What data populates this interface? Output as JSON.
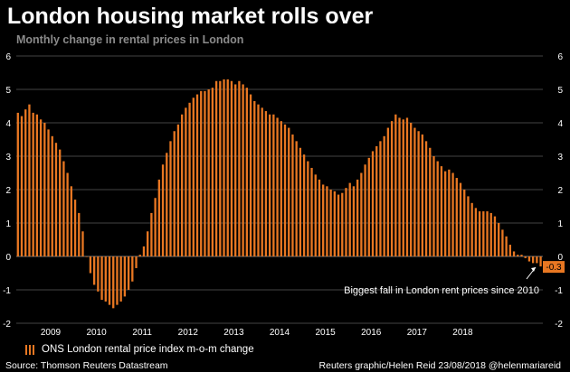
{
  "header": {
    "title": "London housing market rolls over",
    "subtitle": "Monthly change in rental prices in London"
  },
  "legend": {
    "label": "ONS London rental price index m-o-m change"
  },
  "footer": {
    "source": "Source: Thomson Reuters Datastream",
    "credit": "Reuters graphic/Helen Reid 23/08/2018 @helenmariareid"
  },
  "annotation": {
    "text": "Biggest fall in London rent prices since 2010",
    "last_value_label": "-0.3"
  },
  "colors": {
    "bar": "#e87722",
    "background": "#000000",
    "grid": "#444444",
    "label_box": "#e87722"
  },
  "chart_data": {
    "type": "bar",
    "series": [
      {
        "name": "ONS London rental price index m-o-m change",
        "values": [
          4.3,
          4.2,
          4.4,
          4.55,
          4.3,
          4.25,
          4.1,
          4.0,
          3.8,
          3.6,
          3.4,
          3.2,
          2.85,
          2.5,
          2.1,
          1.7,
          1.3,
          0.75,
          0.0,
          -0.5,
          -0.85,
          -1.05,
          -1.3,
          -1.35,
          -1.45,
          -1.55,
          -1.45,
          -1.35,
          -1.2,
          -1.0,
          -0.75,
          -0.35,
          0.05,
          0.3,
          0.75,
          1.3,
          1.75,
          2.3,
          2.75,
          3.1,
          3.45,
          3.75,
          3.95,
          4.25,
          4.45,
          4.6,
          4.75,
          4.85,
          4.95,
          4.95,
          5.0,
          5.05,
          5.25,
          5.25,
          5.3,
          5.3,
          5.25,
          5.15,
          5.25,
          5.15,
          5.05,
          4.85,
          4.65,
          4.55,
          4.45,
          4.35,
          4.25,
          4.25,
          4.15,
          4.05,
          3.95,
          3.85,
          3.65,
          3.45,
          3.25,
          3.05,
          2.85,
          2.65,
          2.45,
          2.3,
          2.15,
          2.1,
          2.0,
          1.95,
          1.85,
          1.9,
          2.05,
          2.2,
          2.1,
          2.3,
          2.5,
          2.75,
          2.95,
          3.15,
          3.3,
          3.45,
          3.6,
          3.85,
          4.05,
          4.25,
          4.15,
          4.1,
          4.15,
          4.0,
          3.85,
          3.75,
          3.65,
          3.45,
          3.25,
          3.0,
          2.85,
          2.7,
          2.55,
          2.6,
          2.5,
          2.35,
          2.2,
          2.0,
          1.8,
          1.6,
          1.45,
          1.35,
          1.35,
          1.35,
          1.3,
          1.2,
          1.0,
          0.8,
          0.6,
          0.35,
          0.15,
          0.05,
          0.05,
          -0.05,
          -0.15,
          -0.2,
          -0.2,
          -0.3
        ]
      }
    ],
    "x_tick_labels": [
      "2009",
      "2010",
      "2011",
      "2012",
      "2013",
      "2014",
      "2015",
      "2016",
      "2017",
      "2018"
    ],
    "y_ticks": [
      -2,
      -1,
      0,
      1,
      2,
      3,
      4,
      5,
      6
    ],
    "ylim": [
      -2,
      6
    ],
    "xlabel": "",
    "ylabel": "",
    "grid": true,
    "legend_position": "bottom-left",
    "axes": "left and right"
  }
}
